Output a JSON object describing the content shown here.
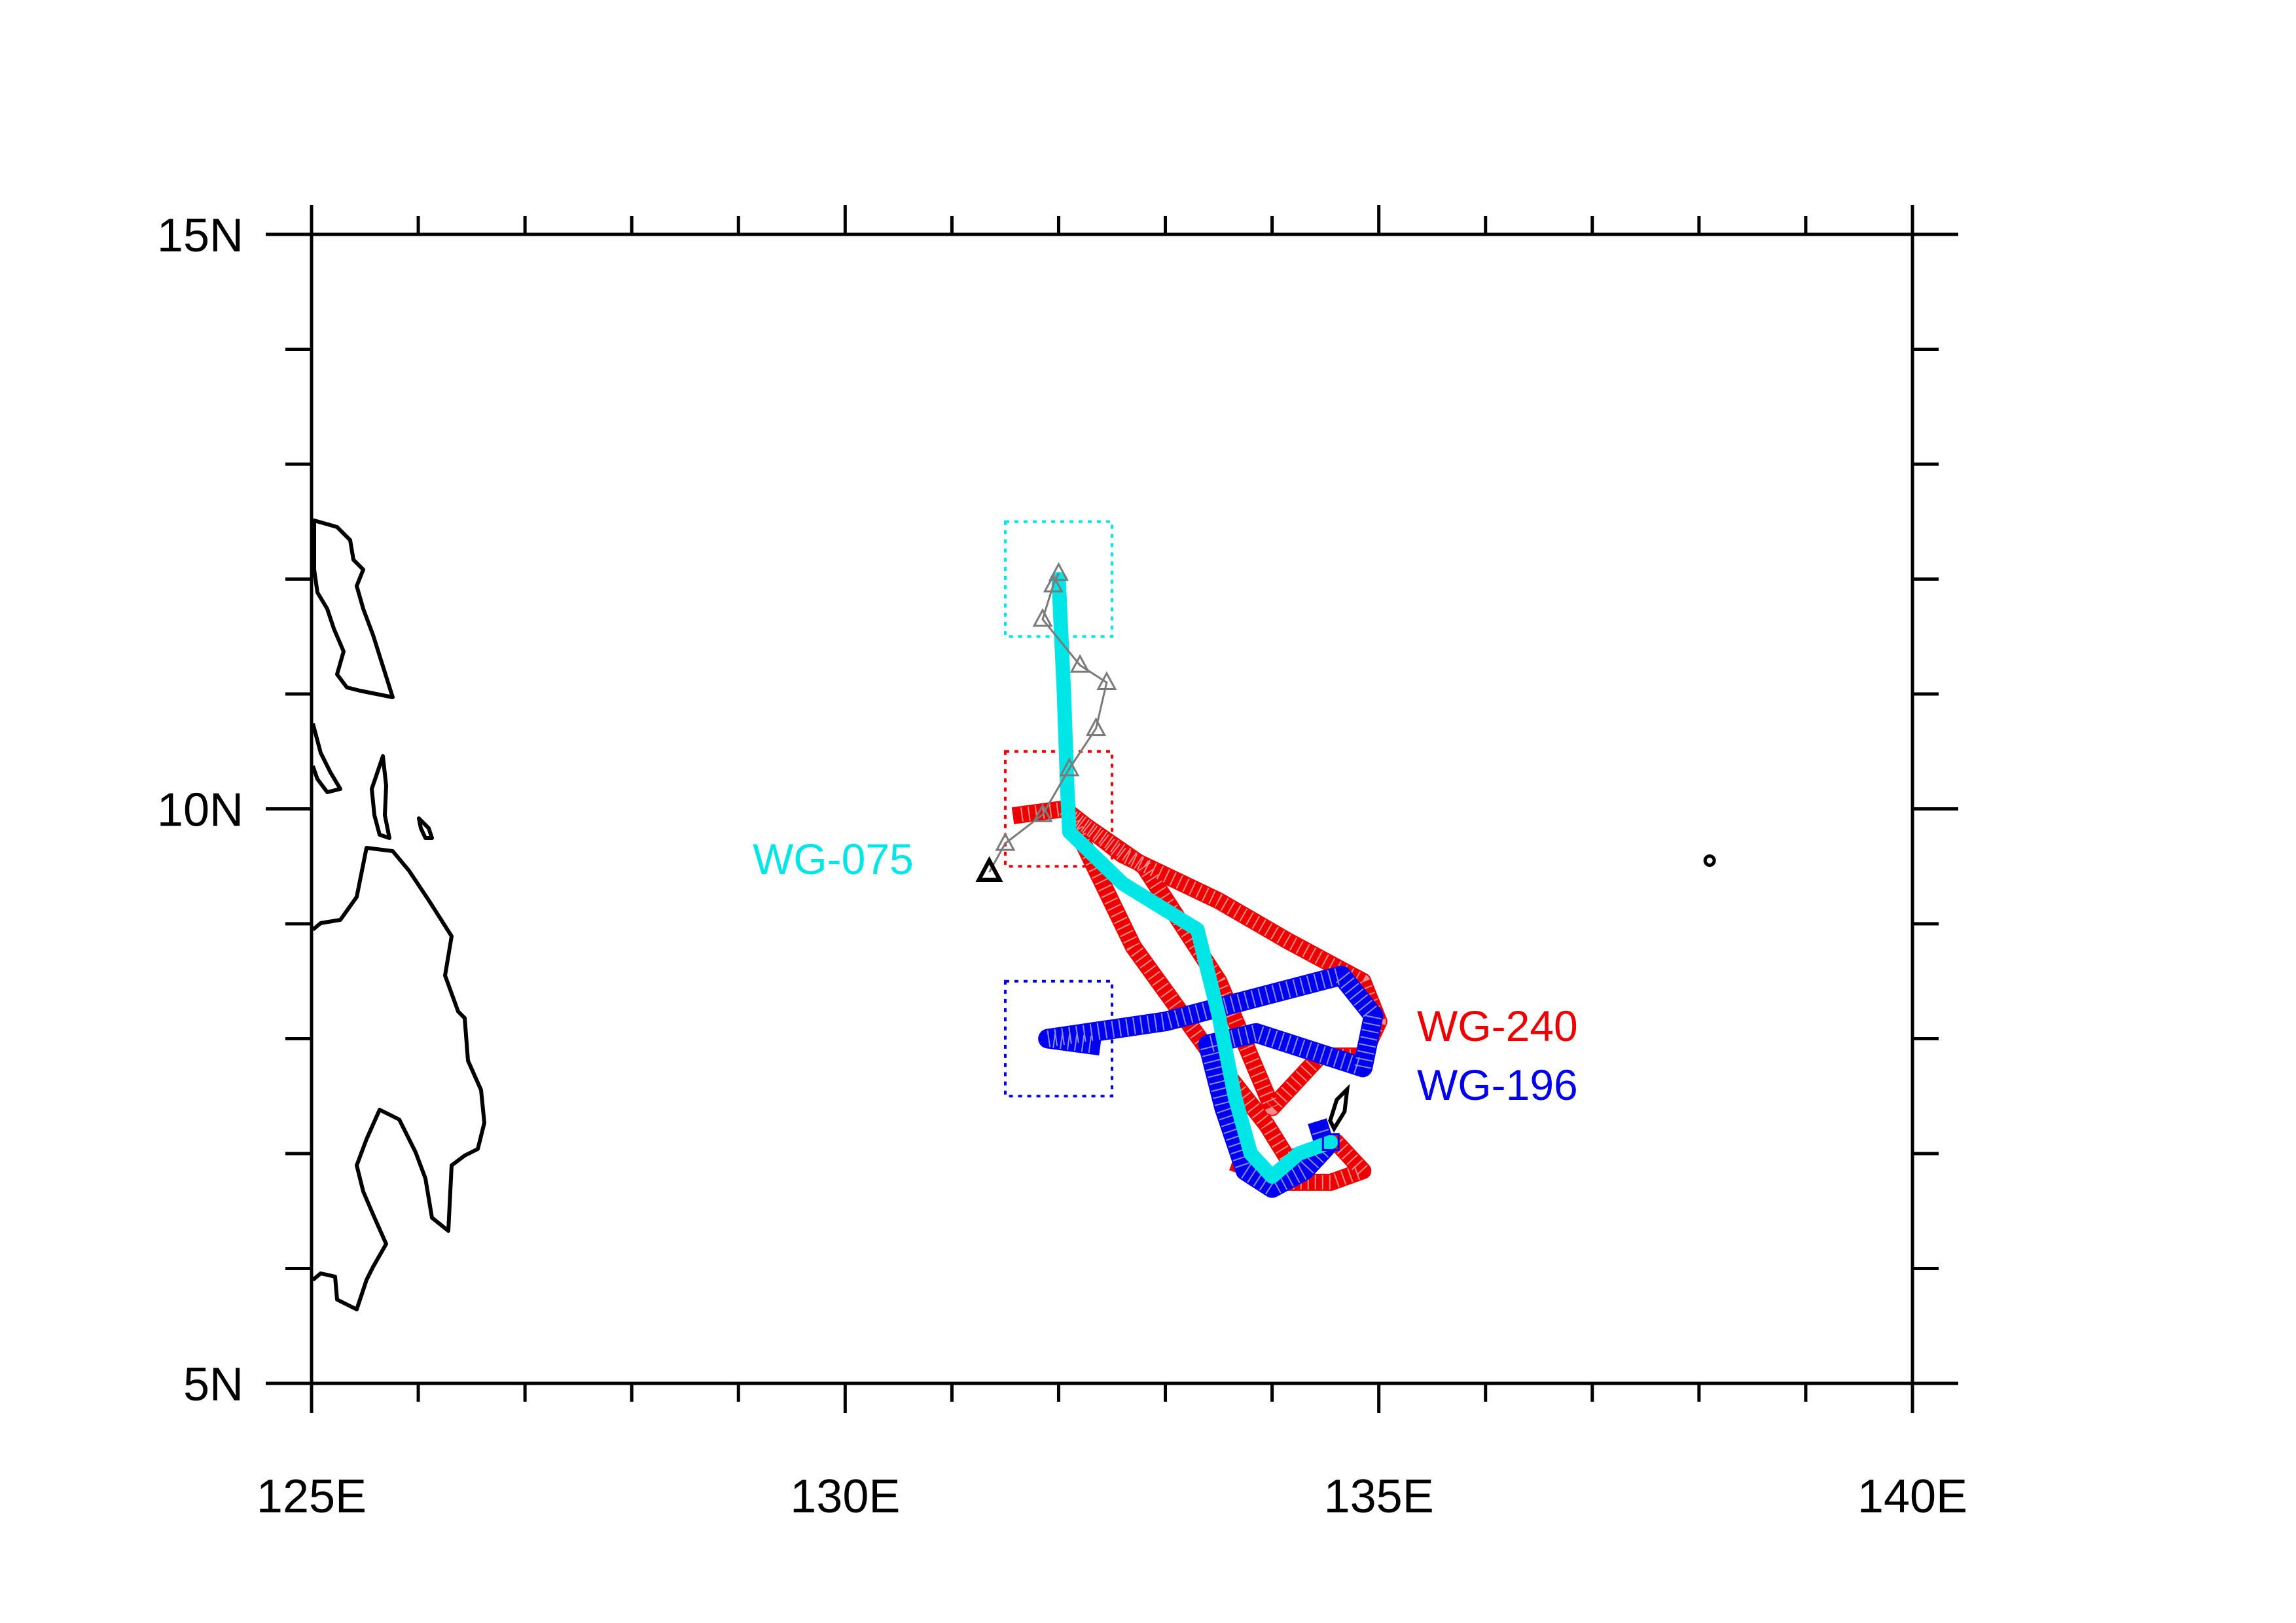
{
  "map": {
    "lon_range": [
      125,
      140
    ],
    "lat_range": [
      5,
      15
    ],
    "x_ticks": [
      {
        "value": 125,
        "label": "125E"
      },
      {
        "value": 130,
        "label": "130E"
      },
      {
        "value": 135,
        "label": "135E"
      },
      {
        "value": 140,
        "label": "140E"
      }
    ],
    "y_ticks": [
      {
        "value": 15,
        "label": "15N"
      },
      {
        "value": 10,
        "label": "10N"
      },
      {
        "value": 5,
        "label": "5N"
      }
    ],
    "minor_tick_step_lon": 1,
    "minor_tick_step_lat": 1
  },
  "legend_labels": {
    "wg075": "WG-075",
    "wg240": "WG-240",
    "wg196": "WG-196"
  },
  "colors": {
    "wg075": "#00e5e5",
    "wg240": "#ee0000",
    "wg196": "#0000ee",
    "gray_track": "#7a7a7a",
    "coast": "#000000"
  },
  "boxes": {
    "cyan": {
      "lon": [
        131.5,
        132.5
      ],
      "lat": [
        11.5,
        12.5
      ]
    },
    "red": {
      "lon": [
        131.5,
        132.5
      ],
      "lat": [
        9.5,
        10.5
      ]
    },
    "blue": {
      "lon": [
        131.5,
        132.5
      ],
      "lat": [
        7.5,
        8.5
      ]
    }
  },
  "chart_data": {
    "type": "map",
    "series": [
      {
        "name": "WG-075",
        "color": "#00e5e5",
        "points": [
          [
            132.0,
            12.0
          ],
          [
            132.05,
            11.0
          ],
          [
            132.08,
            10.2
          ],
          [
            132.1,
            9.8
          ],
          [
            132.6,
            9.35
          ],
          [
            133.3,
            8.95
          ],
          [
            133.5,
            8.2
          ],
          [
            133.65,
            7.5
          ],
          [
            133.8,
            7.0
          ],
          [
            134.0,
            6.8
          ],
          [
            134.25,
            7.0
          ],
          [
            134.55,
            7.1
          ]
        ]
      },
      {
        "name": "WG-240",
        "color": "#ee0000",
        "points": [
          [
            131.65,
            9.95
          ],
          [
            132.05,
            10.0
          ],
          [
            132.6,
            9.6
          ],
          [
            133.5,
            9.2
          ],
          [
            134.15,
            8.85
          ],
          [
            134.85,
            8.5
          ],
          [
            135.0,
            8.15
          ],
          [
            134.85,
            7.85
          ],
          [
            134.45,
            7.85
          ],
          [
            134.0,
            7.4
          ],
          [
            133.5,
            8.5
          ],
          [
            132.8,
            9.5
          ],
          [
            132.1,
            9.95
          ],
          [
            132.7,
            8.8
          ],
          [
            133.4,
            7.9
          ],
          [
            133.95,
            7.25
          ],
          [
            134.15,
            6.95
          ],
          [
            134.6,
            7.1
          ],
          [
            134.85,
            6.85
          ],
          [
            134.55,
            6.75
          ],
          [
            134.15,
            6.75
          ],
          [
            133.7,
            6.9
          ]
        ]
      },
      {
        "name": "WG-196",
        "color": "#0000ee",
        "points": [
          [
            132.3,
            7.95
          ],
          [
            131.9,
            8.0
          ],
          [
            133.0,
            8.15
          ],
          [
            134.65,
            8.55
          ],
          [
            134.95,
            8.2
          ],
          [
            134.85,
            7.75
          ],
          [
            133.85,
            8.05
          ],
          [
            133.4,
            7.95
          ],
          [
            133.55,
            7.4
          ],
          [
            133.75,
            6.85
          ],
          [
            134.0,
            6.7
          ],
          [
            134.3,
            6.85
          ],
          [
            134.5,
            7.05
          ],
          [
            134.45,
            7.2
          ]
        ]
      },
      {
        "name": "",
        "color": "#7a7a7a",
        "points": [
          [
            131.35,
            9.45
          ],
          [
            131.5,
            9.7
          ],
          [
            131.85,
            9.95
          ],
          [
            132.1,
            10.35
          ],
          [
            132.35,
            10.7
          ],
          [
            132.45,
            11.1
          ],
          [
            132.2,
            11.25
          ],
          [
            131.85,
            11.65
          ],
          [
            131.95,
            11.95
          ],
          [
            132.0,
            12.05
          ]
        ]
      }
    ],
    "start_marker": {
      "lon": 131.35,
      "lat": 9.45
    },
    "islands": [
      {
        "lon": 134.63,
        "lat": 7.4
      },
      {
        "lon": 138.1,
        "lat": 9.55
      }
    ]
  }
}
